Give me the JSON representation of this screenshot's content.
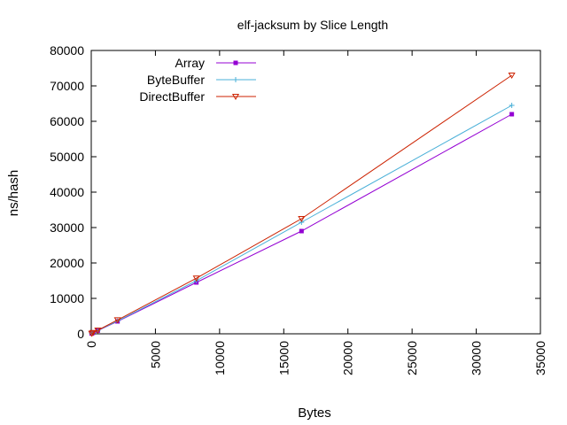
{
  "chart_data": {
    "type": "line",
    "title": "elf-jacksum by Slice Length",
    "xlabel": "Bytes",
    "ylabel": "ns/hash",
    "xlim": [
      0,
      35000
    ],
    "ylim": [
      0,
      80000
    ],
    "x_ticks": [
      0,
      5000,
      10000,
      15000,
      20000,
      25000,
      30000,
      35000
    ],
    "y_ticks": [
      0,
      10000,
      20000,
      30000,
      40000,
      50000,
      60000,
      70000,
      80000
    ],
    "grid": false,
    "legend_position": "top-left",
    "series": [
      {
        "name": "Array",
        "color": "#9400d3",
        "marker": "square",
        "x": [
          32,
          128,
          512,
          2048,
          8192,
          16384,
          32768
        ],
        "y": [
          80,
          250,
          900,
          3500,
          14500,
          29000,
          62000
        ]
      },
      {
        "name": "ByteBuffer",
        "color": "#4ab0d8",
        "marker": "plus",
        "x": [
          32,
          128,
          512,
          2048,
          8192,
          16384,
          32768
        ],
        "y": [
          90,
          270,
          950,
          3600,
          15000,
          31500,
          64500
        ]
      },
      {
        "name": "DirectBuffer",
        "color": "#cc2200",
        "marker": "triangle-down",
        "x": [
          32,
          128,
          512,
          2048,
          8192,
          16384,
          32768
        ],
        "y": [
          100,
          300,
          1000,
          3900,
          15700,
          32500,
          73000
        ]
      }
    ]
  }
}
